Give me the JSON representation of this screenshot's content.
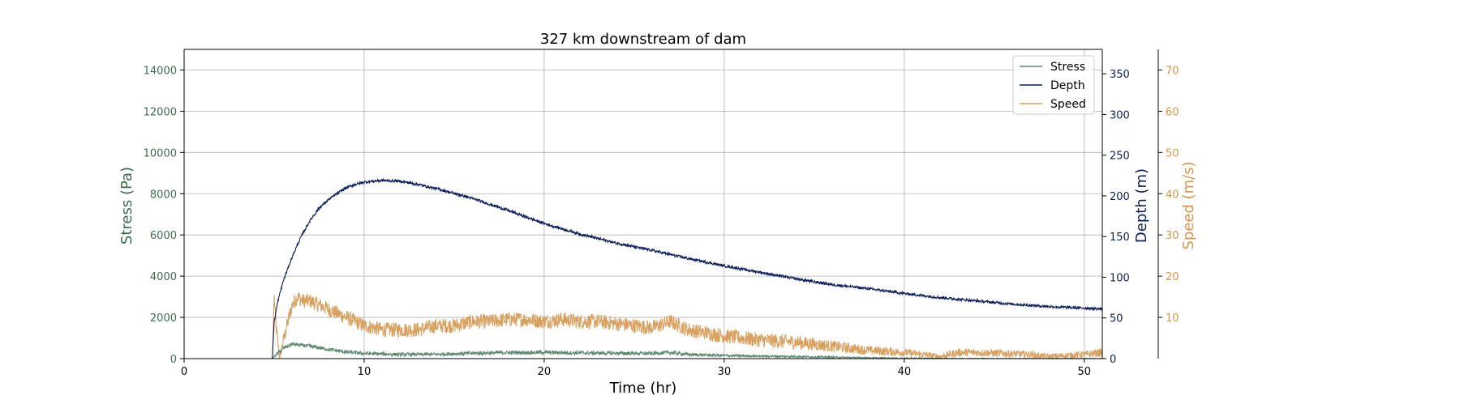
{
  "chart_data": {
    "type": "line",
    "title": "327 km downstream of dam",
    "xlabel": "Time (hr)",
    "xlim": [
      0,
      51
    ],
    "xticks": [
      0,
      10,
      20,
      30,
      40,
      50
    ],
    "grid": true,
    "legend": {
      "placement": "top-right",
      "entries": [
        "Stress",
        "Depth",
        "Speed"
      ]
    },
    "axes": [
      {
        "id": "stress",
        "label": "Stress (Pa)",
        "color": "#3d6b4f",
        "side": "left",
        "ylim": [
          0,
          15000
        ],
        "ticks": [
          0,
          2000,
          4000,
          6000,
          8000,
          10000,
          12000,
          14000
        ]
      },
      {
        "id": "depth",
        "label": "Depth (m)",
        "color": "#0d1f5c",
        "side": "right",
        "ylim": [
          0,
          380
        ],
        "ticks": [
          0,
          50,
          100,
          150,
          200,
          250,
          300,
          350
        ]
      },
      {
        "id": "speed",
        "label": "Speed (m/s)",
        "color": "#d9964a",
        "side": "right-outer",
        "ylim": [
          0,
          75
        ],
        "ticks": [
          10,
          20,
          30,
          40,
          50,
          60,
          70
        ]
      }
    ],
    "series": [
      {
        "name": "Stress",
        "axis": "stress",
        "color": "#5f8a72",
        "x": [
          0,
          4.9,
          5.0,
          5.2,
          5.5,
          6.0,
          6.5,
          7.0,
          8.0,
          9.0,
          10,
          12,
          14,
          16,
          18,
          20,
          22,
          24,
          26,
          27,
          28,
          30,
          32,
          34,
          36,
          38,
          40,
          42,
          44,
          46,
          48,
          50,
          51
        ],
        "y": [
          0,
          0,
          100,
          250,
          500,
          700,
          650,
          600,
          450,
          320,
          250,
          200,
          210,
          260,
          290,
          300,
          280,
          260,
          250,
          300,
          200,
          150,
          120,
          100,
          70,
          40,
          20,
          10,
          5,
          0,
          0,
          0,
          0
        ]
      },
      {
        "name": "Depth",
        "axis": "depth",
        "color": "#0d1f5c",
        "x": [
          0,
          4.9,
          5.0,
          5.2,
          5.5,
          6.0,
          6.5,
          7.0,
          7.5,
          8.0,
          8.5,
          9.0,
          9.5,
          10,
          11,
          12,
          13,
          14,
          15,
          16,
          18,
          20,
          22,
          24,
          26,
          28,
          30,
          32,
          34,
          36,
          38,
          40,
          42,
          44,
          46,
          48,
          50,
          51
        ],
        "y": [
          0,
          0,
          45,
          70,
          95,
          125,
          150,
          170,
          185,
          195,
          203,
          210,
          214,
          217,
          219,
          218,
          214,
          209,
          203,
          197,
          182,
          166,
          153,
          142,
          133,
          123,
          114,
          106,
          98,
          91,
          86,
          80,
          75,
          71,
          67,
          64,
          62,
          61
        ]
      },
      {
        "name": "Speed",
        "axis": "speed",
        "color": "#d9a05e",
        "x": [
          0,
          4.9,
          5.0,
          5.1,
          5.3,
          5.6,
          6.0,
          6.3,
          6.6,
          7.0,
          7.5,
          8.0,
          8.5,
          9.0,
          10,
          11,
          12,
          13,
          14,
          15,
          16,
          17,
          18,
          19,
          20,
          21,
          22,
          23,
          24,
          25,
          26,
          27,
          28,
          30,
          32,
          34,
          36,
          38,
          40,
          41,
          42,
          43,
          44,
          46,
          47,
          48,
          50,
          51
        ],
        "y": [
          0,
          0,
          15,
          8,
          0,
          6,
          13,
          15,
          14,
          14,
          13,
          12,
          11,
          10,
          8,
          7,
          7,
          7,
          8,
          8,
          9,
          9,
          9.5,
          9.5,
          9,
          9.5,
          9,
          9,
          8.5,
          8,
          7.5,
          9,
          7,
          5.5,
          4.5,
          4,
          3,
          2,
          1.5,
          1,
          0.5,
          1.5,
          1.5,
          1.2,
          1,
          0.5,
          1,
          1.5
        ]
      }
    ]
  }
}
